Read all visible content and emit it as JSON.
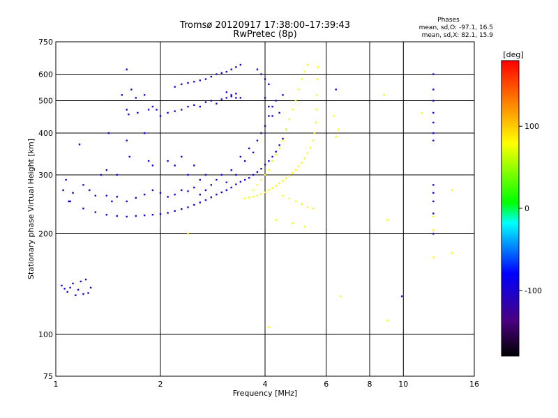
{
  "chart_data": {
    "type": "scatter",
    "title": "Tromsø 20120917 17:38:00–17:39:43",
    "subtitle": "RwPretec (8p)",
    "xlabel": "Frequency [MHz]",
    "ylabel": "Stationary phase Virtual Height [km]",
    "x_scale": "log",
    "y_scale": "log",
    "xlim": [
      1,
      16
    ],
    "ylim": [
      75,
      750
    ],
    "x_ticks": [
      1,
      2,
      4,
      6,
      8,
      10,
      16
    ],
    "x_tick_labels": [
      "1",
      "2",
      "4",
      "6",
      "8",
      "10",
      "16"
    ],
    "x_gridlines": [
      2,
      4,
      6,
      8,
      10
    ],
    "y_ticks": [
      75,
      100,
      200,
      300,
      400,
      500,
      600,
      750
    ],
    "y_tick_labels": [
      "75",
      "100",
      "200",
      "300",
      "400",
      "500",
      "600",
      "750"
    ],
    "y_gridlines": [
      100,
      200,
      300,
      400,
      500,
      600
    ],
    "grid": true,
    "phase_info": {
      "heading": "Phases",
      "line_o": "mean, sd,O: -97.1, 16.5",
      "line_x": "mean, sd,X:  82.1, 15.9"
    },
    "colorbar": {
      "label": "[deg]",
      "range": [
        -180,
        180
      ],
      "ticks": [
        100,
        0,
        -100
      ],
      "tick_labels": [
        "100",
        "0",
        "-100"
      ]
    },
    "series": [
      {
        "mode": "O",
        "phase_deg": -97,
        "points": [
          [
            1.04,
            140
          ],
          [
            1.06,
            137
          ],
          [
            1.08,
            134
          ],
          [
            1.1,
            138
          ],
          [
            1.12,
            142
          ],
          [
            1.14,
            131
          ],
          [
            1.16,
            136
          ],
          [
            1.18,
            144
          ],
          [
            1.2,
            132
          ],
          [
            1.22,
            146
          ],
          [
            1.24,
            133
          ],
          [
            1.26,
            138
          ],
          [
            1.05,
            270
          ],
          [
            1.07,
            290
          ],
          [
            1.09,
            250
          ],
          [
            1.12,
            265
          ],
          [
            1.2,
            280
          ],
          [
            1.25,
            270
          ],
          [
            1.3,
            260
          ],
          [
            1.35,
            300
          ],
          [
            1.4,
            310
          ],
          [
            1.45,
            250
          ],
          [
            1.42,
            400
          ],
          [
            1.17,
            370
          ],
          [
            1.5,
            300
          ],
          [
            1.55,
            520
          ],
          [
            1.6,
            470
          ],
          [
            1.6,
            620
          ],
          [
            1.62,
            455
          ],
          [
            1.65,
            540
          ],
          [
            1.7,
            510
          ],
          [
            1.72,
            460
          ],
          [
            1.8,
            520
          ],
          [
            1.85,
            470
          ],
          [
            1.9,
            480
          ],
          [
            1.95,
            470
          ],
          [
            1.8,
            400
          ],
          [
            1.85,
            330
          ],
          [
            1.9,
            320
          ],
          [
            1.63,
            340
          ],
          [
            1.6,
            380
          ],
          [
            1.1,
            250
          ],
          [
            1.2,
            238
          ],
          [
            1.3,
            232
          ],
          [
            1.4,
            228
          ],
          [
            1.5,
            226
          ],
          [
            1.6,
            225
          ],
          [
            1.7,
            226
          ],
          [
            1.8,
            227
          ],
          [
            1.9,
            228
          ],
          [
            2.0,
            229
          ],
          [
            2.1,
            231
          ],
          [
            2.2,
            234
          ],
          [
            2.3,
            237
          ],
          [
            2.4,
            240
          ],
          [
            2.5,
            244
          ],
          [
            2.6,
            248
          ],
          [
            2.7,
            252
          ],
          [
            2.8,
            257
          ],
          [
            2.9,
            262
          ],
          [
            3.0,
            266
          ],
          [
            3.1,
            270
          ],
          [
            3.2,
            275
          ],
          [
            3.3,
            281
          ],
          [
            3.4,
            286
          ],
          [
            3.5,
            290
          ],
          [
            3.6,
            294
          ],
          [
            3.7,
            300
          ],
          [
            3.8,
            306
          ],
          [
            3.9,
            313
          ],
          [
            4.0,
            322
          ],
          [
            4.1,
            330
          ],
          [
            4.2,
            340
          ],
          [
            4.3,
            352
          ],
          [
            4.4,
            368
          ],
          [
            4.5,
            385
          ],
          [
            4.6,
            410
          ],
          [
            1.4,
            260
          ],
          [
            1.5,
            258
          ],
          [
            1.6,
            250
          ],
          [
            1.7,
            256
          ],
          [
            1.8,
            262
          ],
          [
            1.9,
            270
          ],
          [
            2.0,
            265
          ],
          [
            2.1,
            258
          ],
          [
            2.2,
            262
          ],
          [
            2.3,
            270
          ],
          [
            2.4,
            268
          ],
          [
            2.5,
            275
          ],
          [
            2.6,
            262
          ],
          [
            2.7,
            270
          ],
          [
            2.8,
            280
          ],
          [
            2.9,
            290
          ],
          [
            3.0,
            300
          ],
          [
            3.1,
            285
          ],
          [
            3.2,
            310
          ],
          [
            3.3,
            300
          ],
          [
            3.4,
            340
          ],
          [
            3.5,
            330
          ],
          [
            3.6,
            360
          ],
          [
            3.7,
            350
          ],
          [
            3.8,
            380
          ],
          [
            3.9,
            400
          ],
          [
            4.0,
            420
          ],
          [
            4.1,
            450
          ],
          [
            4.2,
            480
          ],
          [
            4.3,
            500
          ],
          [
            4.4,
            460
          ],
          [
            4.5,
            520
          ],
          [
            2.0,
            450
          ],
          [
            2.1,
            460
          ],
          [
            2.2,
            465
          ],
          [
            2.3,
            470
          ],
          [
            2.4,
            480
          ],
          [
            2.5,
            485
          ],
          [
            2.6,
            480
          ],
          [
            2.7,
            495
          ],
          [
            2.8,
            500
          ],
          [
            2.9,
            490
          ],
          [
            3.0,
            505
          ],
          [
            3.1,
            510
          ],
          [
            3.2,
            515
          ],
          [
            3.3,
            525
          ],
          [
            3.4,
            510
          ],
          [
            2.2,
            550
          ],
          [
            2.3,
            560
          ],
          [
            2.4,
            565
          ],
          [
            2.5,
            570
          ],
          [
            2.6,
            575
          ],
          [
            2.7,
            580
          ],
          [
            2.8,
            590
          ],
          [
            2.9,
            600
          ],
          [
            3.0,
            605
          ],
          [
            3.1,
            610
          ],
          [
            3.2,
            620
          ],
          [
            3.3,
            630
          ],
          [
            3.4,
            640
          ],
          [
            3.8,
            620
          ],
          [
            3.9,
            600
          ],
          [
            4.0,
            580
          ],
          [
            4.1,
            560
          ],
          [
            4.0,
            510
          ],
          [
            4.1,
            480
          ],
          [
            4.2,
            450
          ],
          [
            3.1,
            530
          ],
          [
            3.2,
            520
          ],
          [
            3.3,
            510
          ],
          [
            2.1,
            330
          ],
          [
            2.2,
            320
          ],
          [
            2.3,
            340
          ],
          [
            2.4,
            300
          ],
          [
            2.5,
            320
          ],
          [
            2.6,
            290
          ],
          [
            2.7,
            300
          ],
          [
            6.4,
            540
          ],
          [
            9.9,
            130
          ],
          [
            12.2,
            600
          ],
          [
            12.2,
            540
          ],
          [
            12.2,
            500
          ],
          [
            12.2,
            460
          ],
          [
            12.2,
            430
          ],
          [
            12.2,
            400
          ],
          [
            12.2,
            380
          ],
          [
            12.2,
            280
          ],
          [
            12.2,
            265
          ],
          [
            12.2,
            250
          ],
          [
            12.2,
            230
          ],
          [
            12.2,
            200
          ]
        ]
      },
      {
        "mode": "X",
        "phase_deg": 82,
        "points": [
          [
            3.5,
            255
          ],
          [
            3.6,
            257
          ],
          [
            3.7,
            258
          ],
          [
            3.8,
            260
          ],
          [
            3.9,
            263
          ],
          [
            4.0,
            266
          ],
          [
            4.1,
            270
          ],
          [
            4.2,
            274
          ],
          [
            4.3,
            278
          ],
          [
            4.4,
            283
          ],
          [
            4.5,
            288
          ],
          [
            4.6,
            293
          ],
          [
            4.7,
            298
          ],
          [
            4.8,
            304
          ],
          [
            4.9,
            310
          ],
          [
            5.0,
            318
          ],
          [
            5.1,
            326
          ],
          [
            5.2,
            336
          ],
          [
            5.3,
            348
          ],
          [
            5.4,
            362
          ],
          [
            5.5,
            380
          ],
          [
            5.55,
            400
          ],
          [
            5.6,
            430
          ],
          [
            5.62,
            470
          ],
          [
            5.64,
            520
          ],
          [
            5.66,
            580
          ],
          [
            5.68,
            630
          ],
          [
            3.7,
            270
          ],
          [
            3.8,
            280
          ],
          [
            3.9,
            290
          ],
          [
            4.0,
            300
          ],
          [
            4.1,
            310
          ],
          [
            4.2,
            330
          ],
          [
            4.3,
            345
          ],
          [
            4.4,
            360
          ],
          [
            4.5,
            380
          ],
          [
            4.6,
            410
          ],
          [
            4.7,
            440
          ],
          [
            4.8,
            470
          ],
          [
            4.9,
            500
          ],
          [
            5.0,
            540
          ],
          [
            5.1,
            580
          ],
          [
            5.2,
            610
          ],
          [
            5.3,
            640
          ],
          [
            4.5,
            260
          ],
          [
            4.7,
            255
          ],
          [
            4.9,
            250
          ],
          [
            5.1,
            245
          ],
          [
            5.3,
            240
          ],
          [
            5.5,
            238
          ],
          [
            4.3,
            220
          ],
          [
            4.8,
            215
          ],
          [
            5.2,
            210
          ],
          [
            6.5,
            410
          ],
          [
            6.4,
            390
          ],
          [
            6.3,
            450
          ],
          [
            8.8,
            520
          ],
          [
            9.0,
            220
          ],
          [
            9.0,
            110
          ],
          [
            4.1,
            105
          ],
          [
            6.6,
            130
          ],
          [
            2.4,
            200
          ],
          [
            11.3,
            460
          ],
          [
            13.8,
            175
          ],
          [
            13.8,
            270
          ],
          [
            12.2,
            170
          ],
          [
            12.2,
            205
          ],
          [
            12.2,
            225
          ]
        ]
      }
    ]
  }
}
